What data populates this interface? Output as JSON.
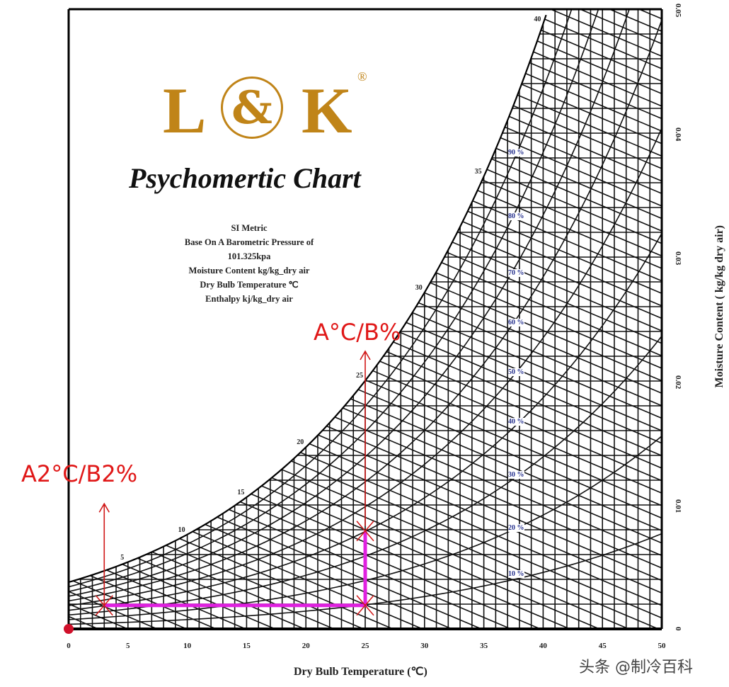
{
  "logo": {
    "left": "L",
    "amp": "&",
    "right": "K",
    "registered": "®",
    "color": "#c08418"
  },
  "title": "Psychomertic Chart",
  "info_lines": [
    "SI Metric",
    "Base On A Barometric Pressure of",
    "101.325kpa",
    "Moisture Content kg/kg_dry air",
    "Dry Bulb Temperature ℃",
    "Enthalpy kj/kg_dry air"
  ],
  "watermark": "头条 @制冷百科",
  "chart_data": {
    "type": "psychrometric",
    "xlabel": "Dry Bulb Temperature (℃)",
    "ylabel": "Moisture Content ( kg/kg dry air)",
    "xlim": [
      0,
      50
    ],
    "ylim": [
      0,
      0.05
    ],
    "x_ticks": [
      "0",
      "5",
      "10",
      "15",
      "20",
      "25",
      "30",
      "35",
      "40",
      "45",
      "50"
    ],
    "y_ticks": [
      "0",
      "0.01",
      "0.02",
      "0.03",
      "0.04",
      "0.05"
    ],
    "pressure_kpa": 101.325,
    "saturation_labels": [
      {
        "t": 5,
        "text": "5"
      },
      {
        "t": 10,
        "text": "10"
      },
      {
        "t": 15,
        "text": "15"
      },
      {
        "t": 20,
        "text": "20"
      },
      {
        "t": 25,
        "text": "25"
      },
      {
        "t": 30,
        "text": "30"
      },
      {
        "t": 35,
        "text": "35"
      },
      {
        "t": 40,
        "text": "40"
      }
    ],
    "rh_curves": [
      10,
      20,
      30,
      40,
      50,
      60,
      70,
      80,
      90
    ],
    "rh_labels": [
      "90 %",
      "80 %",
      "70 %",
      "60 %",
      "50 %",
      "40 %",
      "30 %",
      "20 %",
      "10 %"
    ],
    "dry_bulb_grid_step": 1,
    "moisture_grid_step": 0.002,
    "enthalpy_step": 2.5,
    "colors": {
      "grid": "#111111",
      "rh_label": "#2a3590",
      "process": "#e020e0",
      "arrow": "#d01818",
      "origin_dot": "#d0102a"
    },
    "process_path": [
      {
        "t": 3,
        "w": 0.0019
      },
      {
        "t": 25,
        "w": 0.0019
      },
      {
        "t": 25,
        "w": 0.0079
      }
    ],
    "arrows": [
      {
        "t": 3,
        "w_from": 0.0019,
        "w_to": 0.0101
      },
      {
        "t": 25,
        "w_from": 0.0083,
        "w_to": 0.0224
      }
    ],
    "annotations": [
      {
        "text": "A2°C/B2%"
      },
      {
        "text": "A°C/B%"
      }
    ]
  }
}
